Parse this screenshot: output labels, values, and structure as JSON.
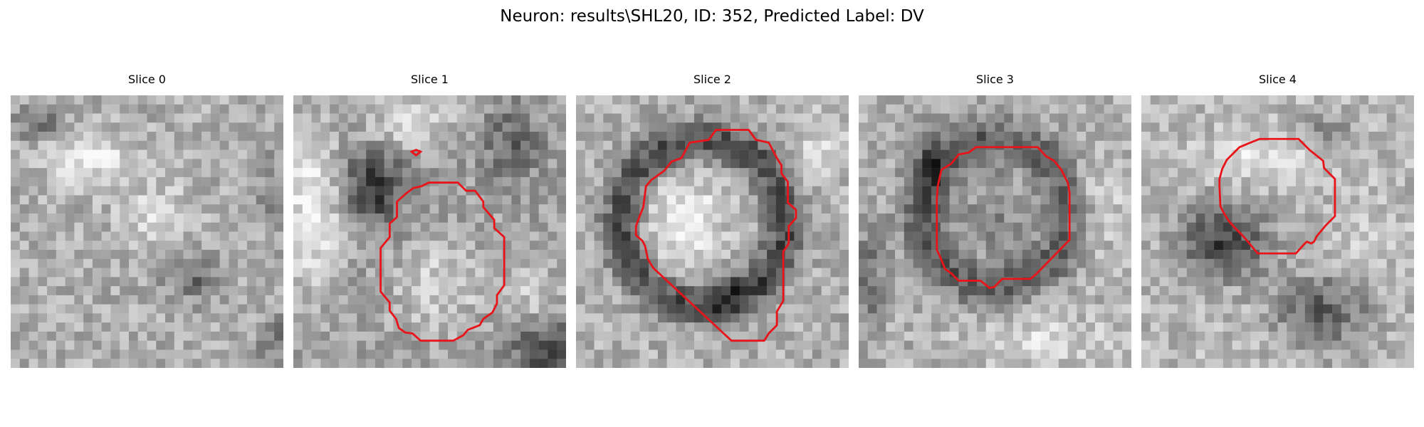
{
  "figure": {
    "title": "Neuron: results\\SHL20, ID: 352, Predicted Label: DV"
  },
  "overlay": {
    "contour_color": "#e8141a"
  },
  "slices": [
    {
      "title": "Slice 0",
      "has_contour": false
    },
    {
      "title": "Slice 1",
      "has_contour": true
    },
    {
      "title": "Slice 2",
      "has_contour": true
    },
    {
      "title": "Slice 3",
      "has_contour": true
    },
    {
      "title": "Slice 4",
      "has_contour": true
    }
  ]
}
